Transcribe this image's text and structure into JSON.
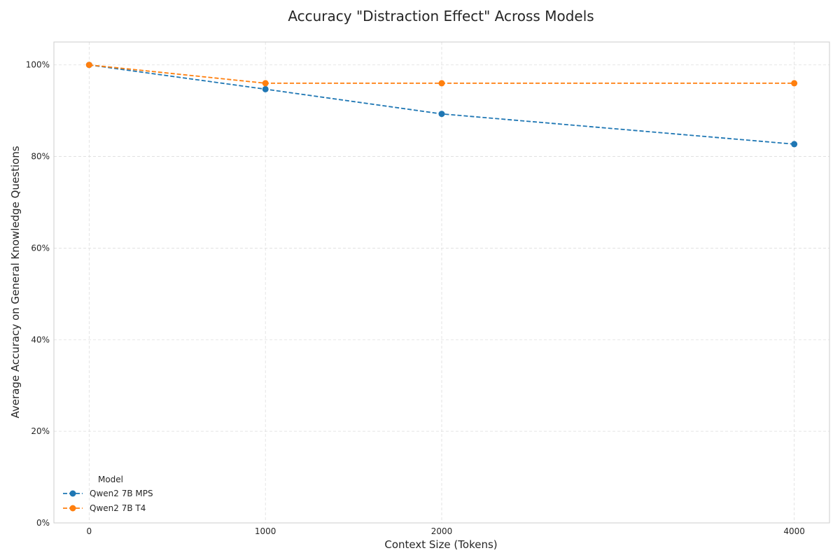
{
  "chart_data": {
    "type": "line",
    "title": "Accuracy \"Distraction Effect\" Across Models",
    "xlabel": "Context Size (Tokens)",
    "ylabel": "Average Accuracy on General Knowledge Questions",
    "x": [
      0,
      1000,
      2000,
      4000
    ],
    "xticks": [
      0,
      1000,
      2000,
      4000
    ],
    "xlim": [
      -200,
      4200
    ],
    "yticks": [
      0,
      20,
      40,
      60,
      80,
      100
    ],
    "ytick_labels": [
      "0%",
      "20%",
      "40%",
      "60%",
      "80%",
      "100%"
    ],
    "ylim": [
      0,
      105
    ],
    "grid": true,
    "grid_style": "dashed",
    "legend": {
      "title": "Model",
      "placement": "lower-left"
    },
    "series": [
      {
        "name": "Qwen2 7B MPS",
        "color": "#1f77b4",
        "line_style": "dashed",
        "marker": "circle",
        "values": [
          100,
          94.7,
          89.3,
          82.7
        ]
      },
      {
        "name": "Qwen2 7B T4",
        "color": "#ff7f0e",
        "line_style": "dashed",
        "marker": "circle",
        "values": [
          100,
          96,
          96,
          96
        ]
      }
    ]
  }
}
